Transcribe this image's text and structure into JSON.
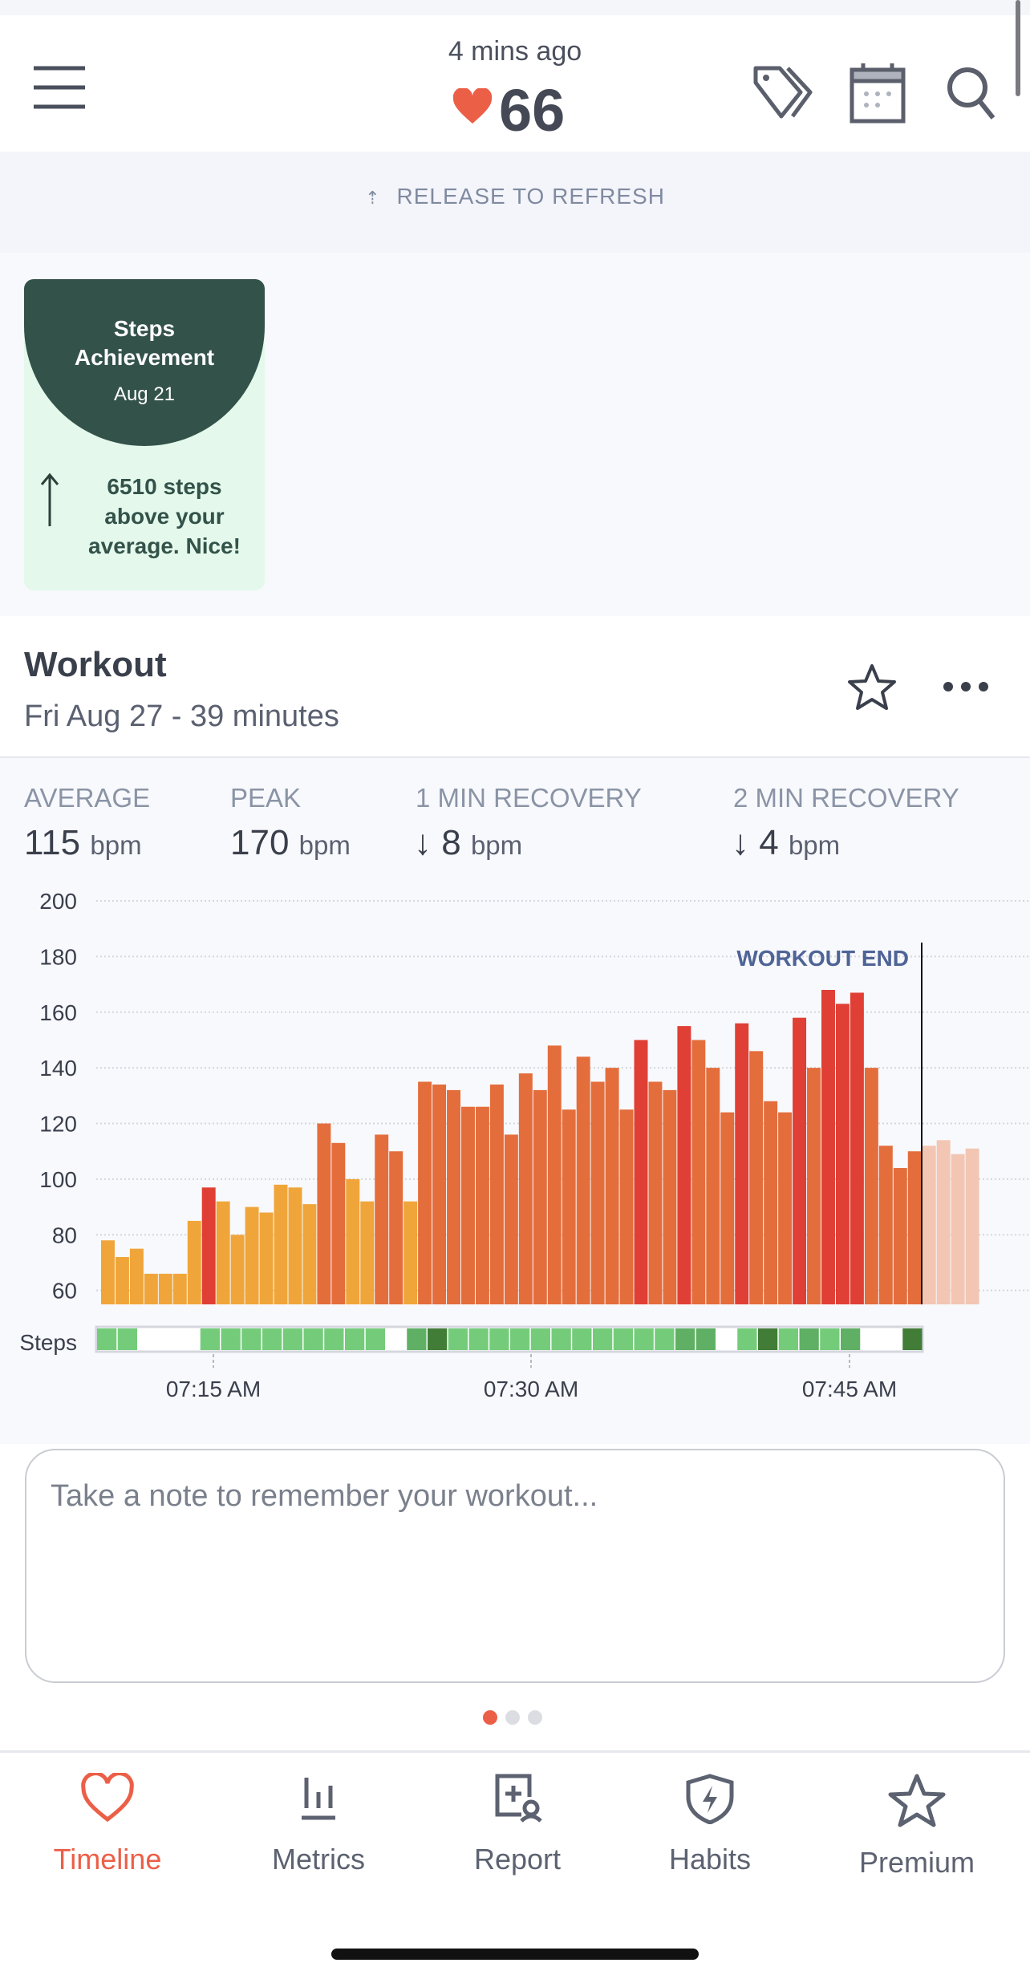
{
  "header": {
    "updated": "4 mins ago",
    "heart_rate": "66",
    "icons": [
      "menu-icon",
      "tag-icon",
      "calendar-icon",
      "search-icon"
    ]
  },
  "refresh": {
    "label": "RELEASE TO REFRESH"
  },
  "achievement": {
    "title_line1": "Steps",
    "title_line2": "Achievement",
    "date": "Aug 21",
    "text_line1": "6510 steps",
    "text_line2": "above your",
    "text_line3": "average. Nice!"
  },
  "workout": {
    "title": "Workout",
    "subtitle": "Fri Aug 27 - 39 minutes",
    "stats": [
      {
        "label": "AVERAGE",
        "value": "115",
        "unit": "bpm"
      },
      {
        "label": "PEAK",
        "value": "170",
        "unit": "bpm"
      },
      {
        "label": "1 MIN RECOVERY",
        "value": "8",
        "unit": "bpm"
      },
      {
        "label": "2 MIN RECOVERY",
        "value": "4",
        "unit": "bpm"
      }
    ],
    "note_placeholder": "Take a note to remember your workout...",
    "page": 1,
    "pages": 3
  },
  "colors": {
    "accent": "#ec5f47",
    "warmup": "#f0a53a",
    "cardio": "#e46d3c",
    "peak": "#e03f35",
    "recovery": "#f2c6b3",
    "steps": [
      "#ffffff",
      "#74cc7a",
      "#5fb064",
      "#427d38"
    ]
  },
  "chart_data": {
    "type": "bar",
    "ylim": [
      55,
      200
    ],
    "yticks": [
      "200",
      "180",
      "160",
      "140",
      "120",
      "100",
      "80",
      "60"
    ],
    "ytick_values": [
      200,
      180,
      160,
      140,
      120,
      100,
      80,
      60
    ],
    "xticks": [
      "07:15 AM",
      "07:30 AM",
      "07:45 AM"
    ],
    "annotation": "WORKOUT END",
    "steps_label": "Steps",
    "values": [
      78,
      72,
      75,
      66,
      66,
      66,
      85,
      97,
      92,
      80,
      90,
      88,
      98,
      97,
      91,
      120,
      113,
      100,
      92,
      116,
      110,
      92,
      135,
      134,
      132,
      126,
      126,
      134,
      116,
      138,
      132,
      148,
      125,
      144,
      135,
      140,
      125,
      150,
      135,
      132,
      155,
      150,
      140,
      124,
      156,
      146,
      128,
      124,
      158,
      140,
      168,
      163,
      167,
      140,
      112,
      104,
      110,
      112,
      114,
      109,
      111
    ],
    "zones": [
      "warmup",
      "warmup",
      "warmup",
      "warmup",
      "warmup",
      "warmup",
      "warmup",
      "peak",
      "warmup",
      "warmup",
      "warmup",
      "warmup",
      "warmup",
      "warmup",
      "warmup",
      "cardio",
      "cardio",
      "warmup",
      "warmup",
      "cardio",
      "cardio",
      "warmup",
      "cardio",
      "cardio",
      "cardio",
      "cardio",
      "cardio",
      "cardio",
      "cardio",
      "cardio",
      "cardio",
      "cardio",
      "cardio",
      "cardio",
      "cardio",
      "cardio",
      "cardio",
      "peak",
      "cardio",
      "cardio",
      "peak",
      "cardio",
      "cardio",
      "cardio",
      "peak",
      "cardio",
      "cardio",
      "cardio",
      "peak",
      "cardio",
      "peak",
      "peak",
      "peak",
      "cardio",
      "cardio",
      "cardio",
      "cardio",
      "recovery",
      "recovery",
      "recovery",
      "recovery"
    ],
    "steps_levels": [
      1,
      1,
      0,
      0,
      0,
      1,
      1,
      1,
      1,
      1,
      1,
      1,
      1,
      1,
      0,
      2,
      3,
      1,
      1,
      1,
      1,
      1,
      1,
      1,
      1,
      1,
      1,
      1,
      2,
      2,
      0,
      1,
      3,
      1,
      2,
      1,
      2,
      0,
      0,
      3
    ]
  },
  "nav": [
    {
      "label": "Timeline",
      "icon": "heart-icon",
      "active": true
    },
    {
      "label": "Metrics",
      "icon": "bar-chart-icon"
    },
    {
      "label": "Report",
      "icon": "report-icon"
    },
    {
      "label": "Habits",
      "icon": "shield-bolt-icon"
    },
    {
      "label": "Premium",
      "icon": "star-icon"
    }
  ]
}
